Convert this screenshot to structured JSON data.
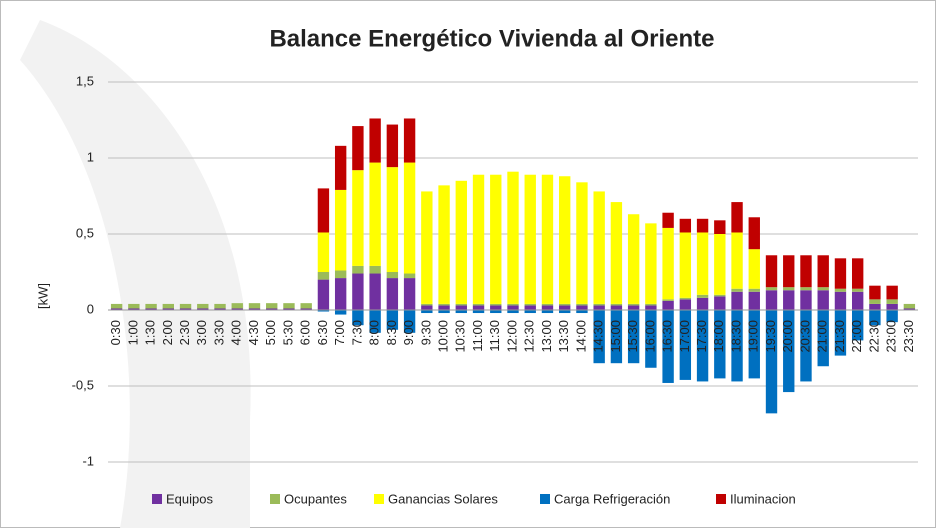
{
  "chart_data": {
    "type": "stacked_bar",
    "title": "Balance Energético Vivienda al Oriente",
    "y_label": "[kW]",
    "categories": [
      "0:30",
      "1:00",
      "1:30",
      "2:00",
      "2:30",
      "3:00",
      "3:30",
      "4:00",
      "4:30",
      "5:00",
      "5:30",
      "6:00",
      "6:30",
      "7:00",
      "7:30",
      "8:00",
      "8:30",
      "9:00",
      "9:30",
      "10:00",
      "10:30",
      "11:00",
      "11:30",
      "12:00",
      "12:30",
      "13:00",
      "13:30",
      "14:00",
      "14:30",
      "15:00",
      "15:30",
      "16:00",
      "16:30",
      "17:00",
      "17:30",
      "18:00",
      "18:30",
      "19:00",
      "19:30",
      "20:00",
      "20:30",
      "21:00",
      "21:30",
      "22:00",
      "22:30",
      "23:00",
      "23:30"
    ],
    "series": [
      {
        "name": "Equipos",
        "color": "#7030a0",
        "values": [
          0.01,
          0.01,
          0.01,
          0.01,
          0.01,
          0.01,
          0.01,
          0.01,
          0.01,
          0.01,
          0.01,
          0.01,
          0.2,
          0.21,
          0.24,
          0.24,
          0.21,
          0.21,
          0.03,
          0.03,
          0.03,
          0.03,
          0.03,
          0.03,
          0.03,
          0.03,
          0.03,
          0.03,
          0.03,
          0.03,
          0.03,
          0.03,
          0.06,
          0.07,
          0.08,
          0.09,
          0.12,
          0.12,
          0.13,
          0.13,
          0.13,
          0.13,
          0.12,
          0.12,
          0.04,
          0.04,
          0.01
        ]
      },
      {
        "name": "Ocupantes",
        "color": "#9bbb59",
        "values": [
          0.03,
          0.03,
          0.03,
          0.03,
          0.03,
          0.03,
          0.03,
          0.035,
          0.035,
          0.035,
          0.035,
          0.035,
          0.05,
          0.05,
          0.05,
          0.05,
          0.04,
          0.03,
          0.01,
          0.01,
          0.01,
          0.01,
          0.01,
          0.01,
          0.01,
          0.01,
          0.01,
          0.01,
          0.01,
          0.01,
          0.01,
          0.01,
          0.01,
          0.01,
          0.02,
          0.01,
          0.02,
          0.02,
          0.02,
          0.02,
          0.02,
          0.02,
          0.02,
          0.02,
          0.03,
          0.03,
          0.03
        ]
      },
      {
        "name": "Ganancias Solares",
        "color": "#ffff00",
        "values": [
          0,
          0,
          0,
          0,
          0,
          0,
          0,
          0,
          0,
          0,
          0,
          0,
          0.26,
          0.53,
          0.63,
          0.68,
          0.69,
          0.73,
          0.74,
          0.78,
          0.81,
          0.85,
          0.85,
          0.87,
          0.85,
          0.85,
          0.84,
          0.8,
          0.74,
          0.67,
          0.59,
          0.53,
          0.47,
          0.43,
          0.41,
          0.4,
          0.37,
          0.26,
          0,
          0,
          0,
          0,
          0,
          0,
          0,
          0,
          0
        ]
      },
      {
        "name": "Carga Refrigeración",
        "color": "#0070c0",
        "values": [
          0,
          0,
          0,
          0,
          0,
          0,
          0,
          0,
          0,
          0,
          0,
          0,
          -0.01,
          -0.03,
          -0.1,
          -0.15,
          -0.13,
          -0.15,
          -0.02,
          -0.02,
          -0.02,
          -0.02,
          -0.02,
          -0.02,
          -0.02,
          -0.02,
          -0.02,
          -0.02,
          -0.35,
          -0.35,
          -0.35,
          -0.38,
          -0.48,
          -0.46,
          -0.47,
          -0.45,
          -0.47,
          -0.45,
          -0.68,
          -0.54,
          -0.47,
          -0.37,
          -0.3,
          -0.2,
          -0.1,
          -0.08,
          0
        ]
      },
      {
        "name": "Iluminacion",
        "color": "#c00000",
        "values": [
          0,
          0,
          0,
          0,
          0,
          0,
          0,
          0,
          0,
          0,
          0,
          0,
          0.29,
          0.29,
          0.29,
          0.29,
          0.28,
          0.29,
          0,
          0,
          0,
          0,
          0,
          0,
          0,
          0,
          0,
          0,
          0,
          0,
          0,
          0,
          0.1,
          0.09,
          0.09,
          0.09,
          0.2,
          0.21,
          0.21,
          0.21,
          0.21,
          0.21,
          0.2,
          0.2,
          0.09,
          0.09,
          0
        ]
      }
    ],
    "ylim": [
      -1,
      1.5
    ],
    "yticks": [
      -1,
      {
        "value": -0.5,
        "label": "-0,5"
      },
      0,
      {
        "value": 0.5,
        "label": "0,5"
      },
      1,
      {
        "value": 1.5,
        "label": "1,5"
      }
    ],
    "grid": true
  }
}
